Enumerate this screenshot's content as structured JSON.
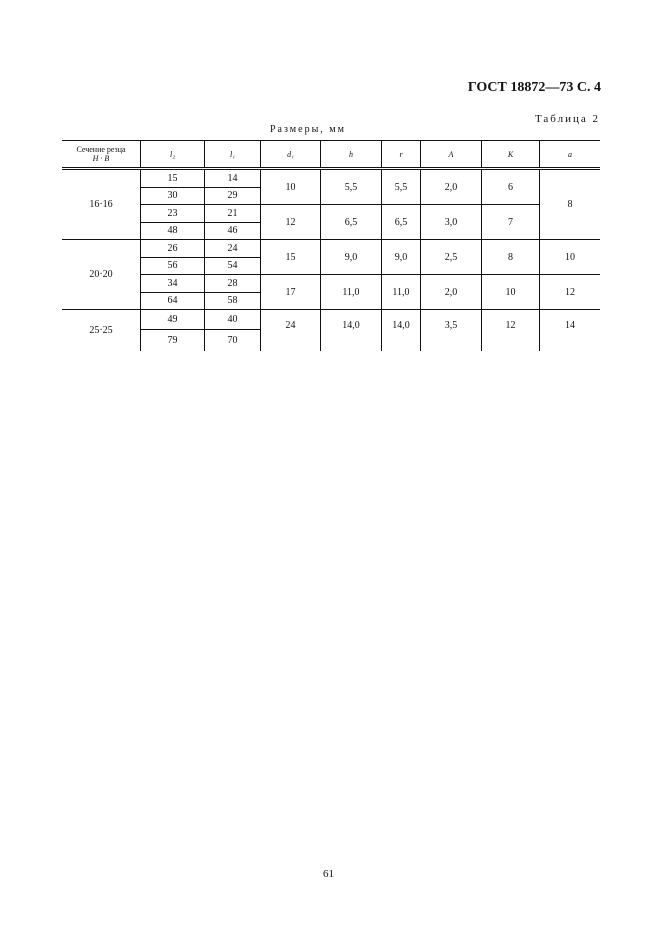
{
  "header": "ГОСТ 18872—73 С. 4",
  "table_label": "Таблица 2",
  "units": "Размеры, мм",
  "columns": {
    "section_line1": "Сечение резца",
    "section_line2": "H · B",
    "l2": "l₂",
    "l1": "l₁",
    "d1": "d₁",
    "h": "h",
    "r": "r",
    "A": "A",
    "K": "K",
    "a": "a"
  },
  "groups": [
    {
      "section": "16·16",
      "rows": [
        [
          "15",
          "14"
        ],
        [
          "30",
          "29"
        ],
        [
          "23",
          "21"
        ],
        [
          "48",
          "46"
        ]
      ],
      "sub": [
        {
          "d1": "10",
          "h": "5,5",
          "r": "5,5",
          "A": "2,0",
          "K": "6"
        },
        {
          "d1": "12",
          "h": "6,5",
          "r": "6,5",
          "A": "3,0",
          "K": "7"
        }
      ],
      "a": "8"
    },
    {
      "section": "20·20",
      "rows": [
        [
          "26",
          "24"
        ],
        [
          "56",
          "54"
        ],
        [
          "34",
          "28"
        ],
        [
          "64",
          "58"
        ]
      ],
      "sub": [
        {
          "d1": "15",
          "h": "9,0",
          "r": "9,0",
          "A": "2,5",
          "K": "8",
          "a": "10"
        },
        {
          "d1": "17",
          "h": "11,0",
          "r": "11,0",
          "A": "2,0",
          "K": "10",
          "a": "12"
        }
      ]
    },
    {
      "section": "25·25",
      "rows": [
        [
          "49",
          "40"
        ],
        [
          "79",
          "70"
        ]
      ],
      "sub": [
        {
          "d1": "24",
          "h": "14,0",
          "r": "14,0",
          "A": "3,5",
          "K": "12",
          "a": "14"
        }
      ]
    }
  ],
  "page_number": "61"
}
